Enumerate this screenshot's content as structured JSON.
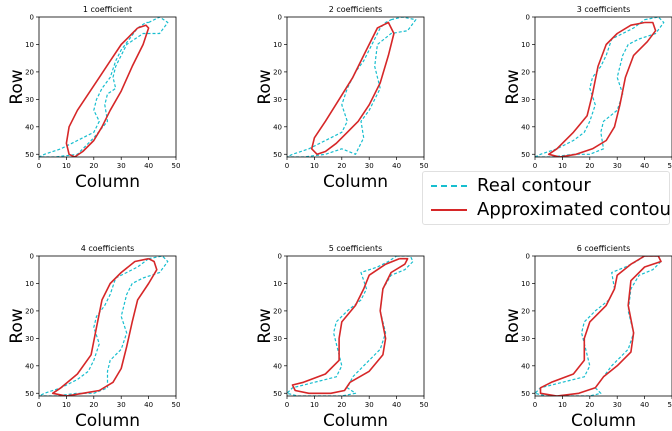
{
  "chart_data": {
    "type": "line",
    "panels": [
      {
        "title": "1 coefficient",
        "xlabel": "Column",
        "ylabel": "Row",
        "xlim": [
          0,
          50
        ],
        "ylim": [
          51,
          0
        ],
        "xticks": [
          0,
          10,
          20,
          30,
          40,
          50
        ],
        "yticks": [
          0,
          10,
          20,
          30,
          40,
          50
        ],
        "series": [
          {
            "name": "Real contour",
            "x": [
              40,
              44,
              47,
              44,
              38,
              32,
              30,
              28,
              27,
              28,
              25,
              24,
              25,
              20,
              14,
              6,
              0,
              2,
              8,
              14,
              20,
              22,
              20,
              21,
              23,
              26,
              28,
              30,
              33,
              36,
              39,
              40
            ],
            "y": [
              2,
              0,
              2,
              6,
              6,
              10,
              14,
              18,
              22,
              26,
              28,
              32,
              38,
              44,
              50,
              51,
              51,
              50,
              48,
              45,
              42,
              38,
              34,
              30,
              26,
              22,
              16,
              12,
              8,
              4,
              2,
              2
            ]
          },
          {
            "name": "Approximated contour",
            "x": [
              36,
              39,
              40,
              38,
              34,
              30,
              26,
              23,
              20,
              16,
              13,
              11,
              10,
              11,
              14,
              18,
              22,
              26,
              30,
              34,
              36
            ],
            "y": [
              4,
              3,
              4,
              10,
              18,
              27,
              34,
              40,
              45,
              49,
              51,
              50,
              46,
              40,
              34,
              28,
              22,
              16,
              10,
              6,
              4
            ]
          }
        ]
      },
      {
        "title": "2 coefficients",
        "xlabel": "Column",
        "ylabel": "Row",
        "xlim": [
          0,
          50
        ],
        "ylim": [
          51,
          0
        ],
        "xticks": [
          0,
          10,
          20,
          30,
          40,
          50
        ],
        "yticks": [
          0,
          10,
          20,
          30,
          40,
          50
        ],
        "series": [
          {
            "name": "Real contour",
            "x": [
              38,
              42,
              47,
              44,
              38,
              33,
              32,
              34,
              30,
              27,
              28,
              26,
              25,
              20,
              14,
              6,
              0,
              2,
              8,
              14,
              20,
              22,
              20,
              22,
              25,
              28,
              30,
              32,
              34,
              36,
              38
            ],
            "y": [
              1,
              0,
              1,
              5,
              6,
              10,
              18,
              26,
              34,
              38,
              44,
              48,
              50,
              48,
              50,
              51,
              51,
              50,
              48,
              45,
              42,
              38,
              32,
              26,
              20,
              16,
              12,
              8,
              4,
              2,
              1
            ]
          },
          {
            "name": "Approximated contour",
            "x": [
              35,
              37,
              39,
              37,
              34,
              30,
              26,
              22,
              18,
              14,
              11,
              9,
              10,
              14,
              19,
              24,
              28,
              31,
              33,
              35
            ],
            "y": [
              3,
              2,
              6,
              14,
              24,
              32,
              38,
              42,
              46,
              49,
              50,
              48,
              44,
              38,
              30,
              22,
              14,
              8,
              4,
              3
            ]
          }
        ]
      },
      {
        "title": "3 coefficients",
        "xlabel": "Column",
        "ylabel": "Row",
        "xlim": [
          0,
          50
        ],
        "ylim": [
          51,
          0
        ],
        "xticks": [
          0,
          10,
          20,
          30,
          40,
          50
        ],
        "yticks": [
          0,
          10,
          20,
          30,
          40,
          50
        ],
        "series": [
          {
            "name": "Real contour",
            "x": [
              40,
              45,
              47,
              44,
              38,
              34,
              32,
              30,
              32,
              30,
              25,
              24,
              25,
              20,
              14,
              6,
              0,
              2,
              8,
              14,
              18,
              20,
              22,
              20,
              21,
              24,
              26,
              28,
              32,
              36,
              40
            ],
            "y": [
              1,
              0,
              2,
              6,
              8,
              10,
              14,
              22,
              28,
              34,
              38,
              42,
              48,
              50,
              50,
              51,
              51,
              50,
              48,
              45,
              42,
              38,
              32,
              26,
              22,
              18,
              14,
              8,
              6,
              4,
              1
            ]
          },
          {
            "name": "Approximated contour",
            "x": [
              40,
              43,
              44,
              41,
              36,
              33,
              31,
              29,
              26,
              21,
              15,
              9,
              5,
              8,
              14,
              19,
              21,
              23,
              26,
              30,
              35,
              40
            ],
            "y": [
              2,
              2,
              5,
              9,
              14,
              22,
              32,
              40,
              45,
              48,
              50,
              51,
              50,
              48,
              42,
              36,
              28,
              18,
              10,
              6,
              3,
              2
            ]
          }
        ]
      },
      {
        "title": "4 coefficients",
        "xlabel": "Column",
        "ylabel": "Row",
        "xlim": [
          0,
          50
        ],
        "ylim": [
          51,
          0
        ],
        "xticks": [
          0,
          10,
          20,
          30,
          40,
          50
        ],
        "yticks": [
          0,
          10,
          20,
          30,
          40,
          50
        ],
        "series": [
          {
            "name": "Real contour",
            "x": [
              40,
              45,
              47,
              44,
              38,
              34,
              32,
              30,
              32,
              30,
              26,
              25,
              25,
              20,
              14,
              6,
              0,
              2,
              8,
              14,
              18,
              20,
              22,
              20,
              21,
              24,
              26,
              28,
              32,
              36,
              40
            ],
            "y": [
              1,
              0,
              2,
              6,
              8,
              10,
              14,
              22,
              28,
              34,
              38,
              42,
              48,
              50,
              50,
              51,
              51,
              50,
              48,
              45,
              42,
              38,
              32,
              26,
              22,
              18,
              14,
              8,
              6,
              4,
              1
            ]
          },
          {
            "name": "Approximated contour",
            "x": [
              40,
              42,
              43,
              40,
              36,
              34,
              32,
              30,
              27,
              22,
              16,
              10,
              5,
              8,
              14,
              19,
              21,
              23,
              26,
              30,
              35,
              40
            ],
            "y": [
              1,
              2,
              5,
              10,
              16,
              24,
              33,
              41,
              46,
              49,
              50,
              51,
              50,
              48,
              43,
              36,
              26,
              16,
              10,
              6,
              2,
              1
            ]
          }
        ]
      },
      {
        "title": "5 coefficients",
        "xlabel": "Column",
        "ylabel": "Row",
        "xlim": [
          0,
          50
        ],
        "ylim": [
          51,
          0
        ],
        "xticks": [
          0,
          10,
          20,
          30,
          40,
          50
        ],
        "yticks": [
          0,
          10,
          20,
          30,
          40,
          50
        ],
        "series": [
          {
            "name": "Real contour",
            "x": [
              40,
              45,
              46,
              43,
              38,
              35,
              34,
              36,
              34,
              28,
              24,
              22,
              25,
              20,
              12,
              4,
              0,
              2,
              10,
              18,
              20,
              19,
              17,
              18,
              22,
              27,
              29,
              27,
              33,
              37,
              40
            ],
            "y": [
              0,
              0,
              2,
              5,
              7,
              12,
              20,
              28,
              34,
              40,
              44,
              48,
              50,
              51,
              51,
              51,
              50,
              48,
              46,
              44,
              40,
              36,
              28,
              24,
              20,
              16,
              12,
              6,
              4,
              2,
              0
            ]
          },
          {
            "name": "Approximated contour",
            "x": [
              41,
              44,
              43,
              38,
              35,
              34,
              36,
              35,
              30,
              23,
              21,
              16,
              8,
              3,
              2,
              6,
              14,
              19,
              19,
              20,
              25,
              28,
              30,
              36,
              41
            ],
            "y": [
              1,
              1,
              3,
              6,
              12,
              20,
              30,
              36,
              42,
              46,
              49,
              50,
              50,
              49,
              47,
              46,
              43,
              38,
              30,
              24,
              18,
              12,
              7,
              3,
              1
            ]
          }
        ]
      },
      {
        "title": "6 coefficients",
        "xlabel": "Column",
        "ylabel": "Row",
        "xlim": [
          0,
          50
        ],
        "ylim": [
          51,
          0
        ],
        "xticks": [
          0,
          10,
          20,
          30,
          40,
          50
        ],
        "yticks": [
          0,
          10,
          20,
          30,
          40,
          50
        ],
        "series": [
          {
            "name": "Real contour",
            "x": [
              40,
              45,
              46,
              43,
              38,
              35,
              34,
              36,
              34,
              28,
              25,
              22,
              24,
              20,
              12,
              4,
              0,
              2,
              10,
              18,
              20,
              19,
              17,
              18,
              22,
              27,
              29,
              28,
              33,
              37,
              40
            ],
            "y": [
              0,
              0,
              2,
              5,
              7,
              12,
              20,
              28,
              34,
              40,
              44,
              48,
              50,
              51,
              51,
              51,
              50,
              48,
              46,
              44,
              40,
              36,
              28,
              24,
              20,
              16,
              12,
              6,
              4,
              2,
              0
            ]
          },
          {
            "name": "Approximated contour",
            "x": [
              40,
              45,
              46,
              40,
              35,
              34,
              36,
              35,
              30,
              25,
              22,
              16,
              8,
              2,
              2,
              6,
              14,
              18,
              18,
              20,
              26,
              29,
              30,
              35,
              40
            ],
            "y": [
              0,
              0,
              2,
              4,
              9,
              18,
              28,
              35,
              40,
              44,
              48,
              50,
              51,
              50,
              48,
              46,
              43,
              38,
              30,
              24,
              18,
              12,
              7,
              3,
              0
            ]
          }
        ]
      }
    ],
    "legend": {
      "position": "right",
      "entries": [
        {
          "label": "Real contour",
          "color": "#17becf",
          "style": "dashed"
        },
        {
          "label": "Approximated contour",
          "color": "#d62728",
          "style": "solid"
        }
      ]
    }
  }
}
